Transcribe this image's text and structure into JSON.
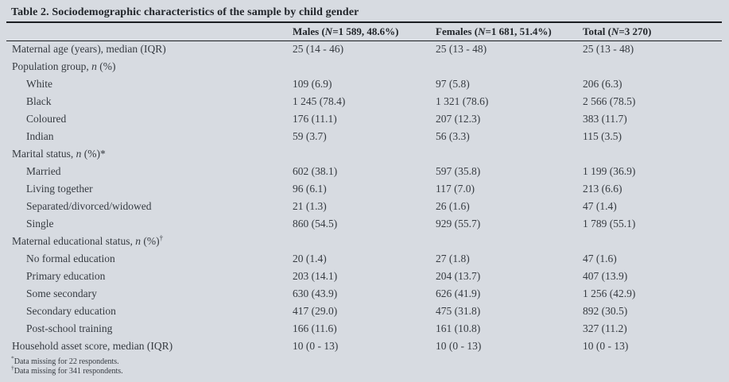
{
  "title": "Table 2. Sociodemographic characteristics of the sample by child gender",
  "table": {
    "columns": [
      {
        "name": "characteristic",
        "parts": []
      },
      {
        "name": "males",
        "parts": [
          {
            "t": "Males ("
          },
          {
            "t": "N",
            "i": true
          },
          {
            "t": "=1 589, 48.6%)"
          }
        ]
      },
      {
        "name": "females",
        "parts": [
          {
            "t": "Females ("
          },
          {
            "t": "N",
            "i": true
          },
          {
            "t": "=1 681, 51.4%)"
          }
        ]
      },
      {
        "name": "total",
        "parts": [
          {
            "t": "Total ("
          },
          {
            "t": "N",
            "i": true
          },
          {
            "t": "=3 270)"
          }
        ]
      }
    ],
    "rows": [
      {
        "indent": false,
        "label": [
          {
            "t": "Maternal age (years), median (IQR)"
          }
        ],
        "cells": [
          "25 (14 - 46)",
          "25 (13 - 48)",
          "25 (13 - 48)"
        ]
      },
      {
        "indent": false,
        "label": [
          {
            "t": "Population group, "
          },
          {
            "t": "n",
            "i": true
          },
          {
            "t": " (%)"
          }
        ],
        "cells": [
          "",
          "",
          ""
        ]
      },
      {
        "indent": true,
        "label": [
          {
            "t": "White"
          }
        ],
        "cells": [
          "109 (6.9)",
          "97 (5.8)",
          "206 (6.3)"
        ]
      },
      {
        "indent": true,
        "label": [
          {
            "t": "Black"
          }
        ],
        "cells": [
          "1 245 (78.4)",
          "1 321 (78.6)",
          "2 566 (78.5)"
        ]
      },
      {
        "indent": true,
        "label": [
          {
            "t": "Coloured"
          }
        ],
        "cells": [
          "176 (11.1)",
          "207 (12.3)",
          "383 (11.7)"
        ]
      },
      {
        "indent": true,
        "label": [
          {
            "t": "Indian"
          }
        ],
        "cells": [
          "59 (3.7)",
          "56 (3.3)",
          "115 (3.5)"
        ]
      },
      {
        "indent": false,
        "label": [
          {
            "t": "Marital status, "
          },
          {
            "t": "n",
            "i": true
          },
          {
            "t": " (%)*"
          }
        ],
        "cells": [
          "",
          "",
          ""
        ]
      },
      {
        "indent": true,
        "label": [
          {
            "t": "Married"
          }
        ],
        "cells": [
          "602 (38.1)",
          "597 (35.8)",
          "1 199 (36.9)"
        ]
      },
      {
        "indent": true,
        "label": [
          {
            "t": "Living together"
          }
        ],
        "cells": [
          "96 (6.1)",
          "117 (7.0)",
          "213 (6.6)"
        ]
      },
      {
        "indent": true,
        "label": [
          {
            "t": "Separated/divorced/widowed"
          }
        ],
        "cells": [
          "21 (1.3)",
          "26 (1.6)",
          "47 (1.4)"
        ]
      },
      {
        "indent": true,
        "label": [
          {
            "t": "Single"
          }
        ],
        "cells": [
          "860 (54.5)",
          "929 (55.7)",
          "1 789 (55.1)"
        ]
      },
      {
        "indent": false,
        "label": [
          {
            "t": "Maternal educational status, "
          },
          {
            "t": "n",
            "i": true
          },
          {
            "t": " (%)"
          },
          {
            "t": "†",
            "s": "sup"
          }
        ],
        "cells": [
          "",
          "",
          ""
        ]
      },
      {
        "indent": true,
        "label": [
          {
            "t": "No formal education"
          }
        ],
        "cells": [
          "20 (1.4)",
          "27 (1.8)",
          "47 (1.6)"
        ]
      },
      {
        "indent": true,
        "label": [
          {
            "t": "Primary education"
          }
        ],
        "cells": [
          "203 (14.1)",
          "204 (13.7)",
          "407 (13.9)"
        ]
      },
      {
        "indent": true,
        "label": [
          {
            "t": "Some secondary"
          }
        ],
        "cells": [
          "630 (43.9)",
          "626 (41.9)",
          "1 256 (42.9)"
        ]
      },
      {
        "indent": true,
        "label": [
          {
            "t": "Secondary education"
          }
        ],
        "cells": [
          "417 (29.0)",
          "475 (31.8)",
          "892 (30.5)"
        ]
      },
      {
        "indent": true,
        "label": [
          {
            "t": "Post-school training"
          }
        ],
        "cells": [
          "166 (11.6)",
          "161 (10.8)",
          "327 (11.2)"
        ]
      },
      {
        "indent": false,
        "label": [
          {
            "t": "Household asset score, median (IQR)"
          }
        ],
        "cells": [
          "10 (0 - 13)",
          "10 (0 - 13)",
          "10 (0 - 13)"
        ]
      }
    ]
  },
  "footnotes": [
    {
      "marker": "*",
      "text": "Data missing for 22 respondents."
    },
    {
      "marker": "†",
      "text": "Data missing for 341 respondents."
    }
  ],
  "colors": {
    "background": "#d7dbe1",
    "text": "#363b41",
    "title": "#22262b",
    "rule": "#1b1e22"
  }
}
